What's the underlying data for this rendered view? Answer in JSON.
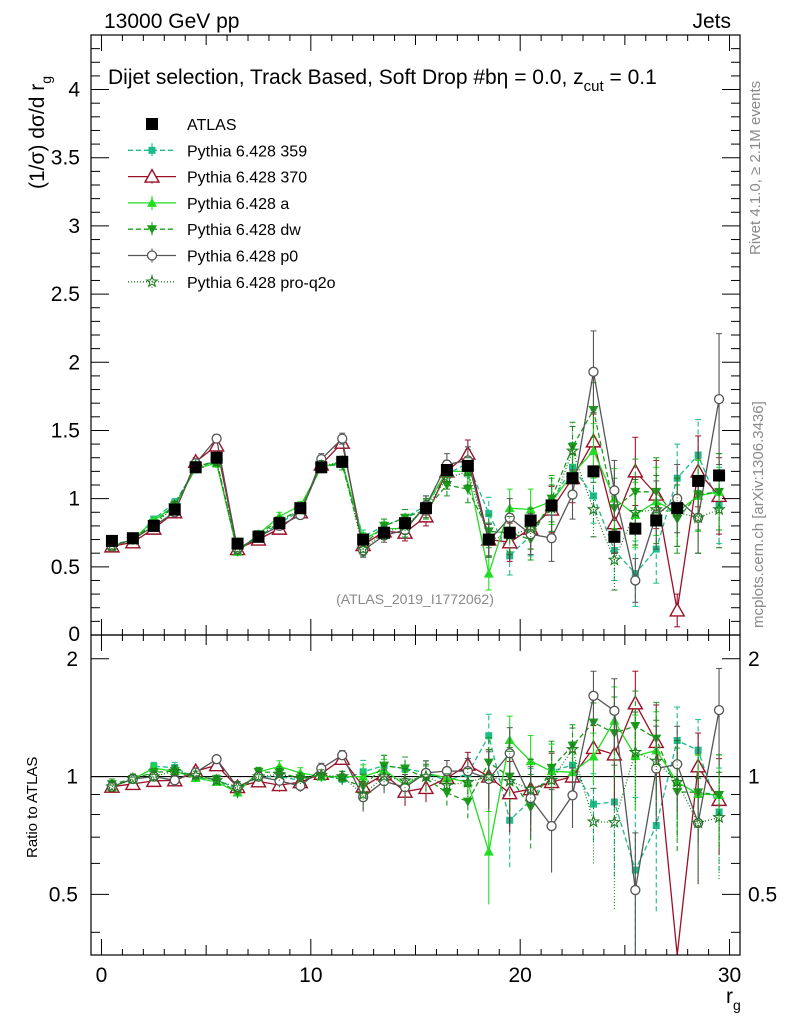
{
  "header": {
    "process": "13000 GeV pp",
    "category": "Jets",
    "selection": "Dijet selection, Track Based, Soft Drop #bη = 0.0, z",
    "selection_sub": "cut",
    "selection_tail": " = 0.1",
    "rivet_label": "Rivet 4.1.0, ≥ 2.1M events",
    "mcplots_label": "mcplots.cern.ch [arXiv:1306.3436]",
    "analysis_tag": "(ATLAS_2019_I1772062)"
  },
  "chart_data": {
    "type": "line",
    "title": "Dijet selection, Track Based, Soft Drop",
    "xlabel": "r",
    "xlabel_sub": "g",
    "ylabel": "(1/σ) dσ/d r",
    "ylabel_sub": "g",
    "ratio_ylabel": "Ratio to ATLAS",
    "xlim": [
      -0.5,
      30.5
    ],
    "ylim": [
      0,
      4.4
    ],
    "ratio_ylim": [
      0.35,
      2.3
    ],
    "x_ticks": [
      "0",
      "10",
      "20",
      "30"
    ],
    "y_ticks": [
      "0.5",
      "1",
      "1.5",
      "2",
      "2.5",
      "3",
      "3.5",
      "4"
    ],
    "y_zero_label": "0",
    "ratio_ticks": [
      "0.5",
      "1",
      "2"
    ],
    "x": [
      0.5,
      1.5,
      2.5,
      3.5,
      4.5,
      5.5,
      6.5,
      7.5,
      8.5,
      9.5,
      10.5,
      11.5,
      12.5,
      13.5,
      14.5,
      15.5,
      16.5,
      17.5,
      18.5,
      19.5,
      20.5,
      21.5,
      22.5,
      23.5,
      24.5,
      25.5,
      26.5,
      27.5,
      28.5,
      29.5
    ],
    "data": {
      "name": "ATLAS",
      "values": [
        0.69,
        0.71,
        0.8,
        0.92,
        1.23,
        1.3,
        0.67,
        0.72,
        0.82,
        0.93,
        1.23,
        1.27,
        0.7,
        0.75,
        0.82,
        0.93,
        1.21,
        1.24,
        0.7,
        0.75,
        0.84,
        0.95,
        1.15,
        1.2,
        0.72,
        0.78,
        0.84,
        0.93,
        1.13,
        1.17
      ]
    },
    "series": [
      {
        "name": "Pythia 6.428 359",
        "color": "#1abc8c",
        "dash": "5,3",
        "marker": "square",
        "values": [
          0.66,
          0.69,
          0.85,
          0.97,
          1.22,
          1.28,
          0.62,
          0.72,
          0.82,
          0.91,
          1.24,
          1.25,
          0.72,
          0.8,
          0.86,
          0.95,
          1.18,
          1.26,
          0.89,
          0.58,
          0.73,
          0.98,
          1.23,
          1.02,
          0.62,
          0.45,
          0.63,
          1.15,
          1.32,
          0.95
        ],
        "errors": [
          0.02,
          0.02,
          0.02,
          0.03,
          0.03,
          0.03,
          0.02,
          0.02,
          0.03,
          0.03,
          0.04,
          0.04,
          0.05,
          0.05,
          0.06,
          0.07,
          0.08,
          0.1,
          0.12,
          0.14,
          0.15,
          0.17,
          0.18,
          0.2,
          0.22,
          0.24,
          0.25,
          0.25,
          0.26,
          0.28
        ]
      },
      {
        "name": "Pythia 6.428 370",
        "color": "#9b1028",
        "dash": "",
        "marker": "triangle-open",
        "values": [
          0.65,
          0.68,
          0.78,
          0.9,
          1.27,
          1.39,
          0.63,
          0.7,
          0.78,
          0.9,
          1.25,
          1.41,
          0.66,
          0.76,
          0.75,
          0.87,
          1.2,
          1.33,
          0.7,
          0.68,
          0.78,
          0.92,
          1.15,
          1.42,
          0.82,
          1.2,
          1.03,
          0.18,
          1.2,
          1.02
        ],
        "errors": [
          0.02,
          0.02,
          0.02,
          0.03,
          0.03,
          0.03,
          0.02,
          0.02,
          0.03,
          0.03,
          0.04,
          0.04,
          0.05,
          0.05,
          0.06,
          0.07,
          0.08,
          0.1,
          0.12,
          0.14,
          0.15,
          0.17,
          0.18,
          0.2,
          0.22,
          0.25,
          0.25,
          0.12,
          0.26,
          0.28
        ]
      },
      {
        "name": "Pythia 6.428 a",
        "color": "#22dd22",
        "dash": "",
        "marker": "triangle",
        "values": [
          0.65,
          0.7,
          0.84,
          0.95,
          1.22,
          1.26,
          0.61,
          0.74,
          0.87,
          0.95,
          1.23,
          1.27,
          0.7,
          0.78,
          0.78,
          0.95,
          1.2,
          1.2,
          0.45,
          0.93,
          0.92,
          0.98,
          1.18,
          1.35,
          1.0,
          0.88,
          0.98,
          0.9,
          1.02,
          1.05
        ],
        "errors": [
          0.02,
          0.02,
          0.02,
          0.03,
          0.03,
          0.03,
          0.02,
          0.02,
          0.03,
          0.03,
          0.04,
          0.04,
          0.05,
          0.05,
          0.06,
          0.07,
          0.08,
          0.1,
          0.12,
          0.14,
          0.15,
          0.17,
          0.18,
          0.2,
          0.22,
          0.24,
          0.25,
          0.25,
          0.26,
          0.28
        ]
      },
      {
        "name": "Pythia 6.428 dw",
        "color": "#1a9c1a",
        "dash": "5,3",
        "marker": "triangle-down",
        "values": [
          0.66,
          0.7,
          0.82,
          0.95,
          1.23,
          1.28,
          0.61,
          0.74,
          0.84,
          0.92,
          1.24,
          1.25,
          0.66,
          0.8,
          0.86,
          0.92,
          1.1,
          1.07,
          0.76,
          0.75,
          0.7,
          1.0,
          1.38,
          1.65,
          0.93,
          1.05,
          1.05,
          0.85,
          1.03,
          1.05
        ],
        "errors": [
          0.02,
          0.02,
          0.02,
          0.03,
          0.03,
          0.03,
          0.02,
          0.02,
          0.03,
          0.03,
          0.04,
          0.04,
          0.05,
          0.05,
          0.06,
          0.07,
          0.08,
          0.1,
          0.12,
          0.14,
          0.15,
          0.17,
          0.18,
          0.2,
          0.22,
          0.24,
          0.25,
          0.25,
          0.26,
          0.28
        ]
      },
      {
        "name": "Pythia 6.428 p0",
        "color": "#555555",
        "dash": "",
        "marker": "circle-open",
        "values": [
          0.65,
          0.7,
          0.8,
          0.9,
          1.26,
          1.44,
          0.63,
          0.72,
          0.8,
          0.88,
          1.29,
          1.44,
          0.62,
          0.73,
          0.77,
          0.95,
          1.25,
          1.28,
          0.69,
          0.86,
          0.74,
          0.71,
          1.03,
          1.93,
          1.06,
          0.4,
          0.88,
          1.0,
          0.86,
          1.73
        ],
        "errors": [
          0.02,
          0.02,
          0.02,
          0.03,
          0.03,
          0.03,
          0.02,
          0.02,
          0.03,
          0.03,
          0.04,
          0.04,
          0.05,
          0.05,
          0.06,
          0.07,
          0.08,
          0.1,
          0.12,
          0.14,
          0.15,
          0.17,
          0.18,
          0.3,
          0.22,
          0.16,
          0.25,
          0.25,
          0.26,
          0.48
        ]
      },
      {
        "name": "Pythia 6.428 pro-q2o",
        "color": "#1f7a1f",
        "dash": "1,2",
        "marker": "star",
        "values": [
          0.65,
          0.7,
          0.8,
          0.95,
          1.24,
          1.27,
          0.63,
          0.72,
          0.83,
          0.92,
          1.24,
          1.27,
          0.63,
          0.75,
          0.8,
          0.93,
          1.15,
          1.2,
          0.7,
          0.73,
          0.78,
          0.93,
          1.35,
          0.92,
          0.55,
          0.9,
          0.92,
          0.9,
          0.86,
          0.92
        ],
        "errors": [
          0.02,
          0.02,
          0.02,
          0.03,
          0.03,
          0.03,
          0.02,
          0.02,
          0.03,
          0.03,
          0.04,
          0.04,
          0.05,
          0.05,
          0.06,
          0.07,
          0.08,
          0.1,
          0.12,
          0.14,
          0.15,
          0.17,
          0.18,
          0.2,
          0.22,
          0.24,
          0.25,
          0.25,
          0.26,
          0.28
        ]
      }
    ]
  }
}
